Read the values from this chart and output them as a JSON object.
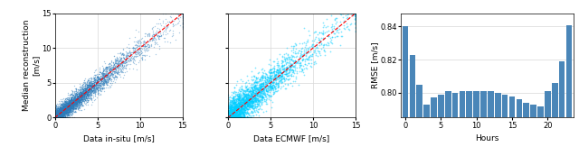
{
  "scatter_xlim": [
    0,
    15
  ],
  "scatter_ylim": [
    0,
    15
  ],
  "scatter_xticks": [
    0,
    5,
    10,
    15
  ],
  "scatter_yticks": [
    0,
    5,
    10,
    15
  ],
  "scatter1_xlabel": "Data in-situ [m/s]",
  "scatter1_ylabel": "Median reconstruction\n[m/s]",
  "scatter2_xlabel": "Data ECMWF [m/s]",
  "scatter_dot_color": "#2B7BBA",
  "scatter_dot_size": 1.0,
  "scatter_dot_alpha": 0.4,
  "scatter2_dot_color": "#00CFFF",
  "scatter2_dot_size": 1.5,
  "scatter2_dot_alpha": 0.5,
  "diag_color": "red",
  "diag_style": "--",
  "bar_hours": [
    0,
    1,
    2,
    3,
    4,
    5,
    6,
    7,
    8,
    9,
    10,
    11,
    12,
    13,
    14,
    15,
    16,
    17,
    18,
    19,
    20,
    21,
    22,
    23
  ],
  "bar_values": [
    0.84,
    0.823,
    0.805,
    0.793,
    0.797,
    0.799,
    0.801,
    0.8,
    0.801,
    0.801,
    0.801,
    0.801,
    0.801,
    0.8,
    0.799,
    0.798,
    0.796,
    0.794,
    0.793,
    0.792,
    0.801,
    0.806,
    0.819,
    0.841
  ],
  "bar_color": "#4A86B8",
  "bar_xlabel": "Hours",
  "bar_ylabel": "RMSE [m/s]",
  "bar_ylim": [
    0.785,
    0.848
  ],
  "bar_yticks": [
    0.8,
    0.82,
    0.84
  ],
  "bar_xticks": [
    0,
    5,
    10,
    15,
    20
  ],
  "grid_color": "#D8D8D8",
  "bg_color": "#FFFFFF",
  "bar_bg_color": "#FFFFFF"
}
